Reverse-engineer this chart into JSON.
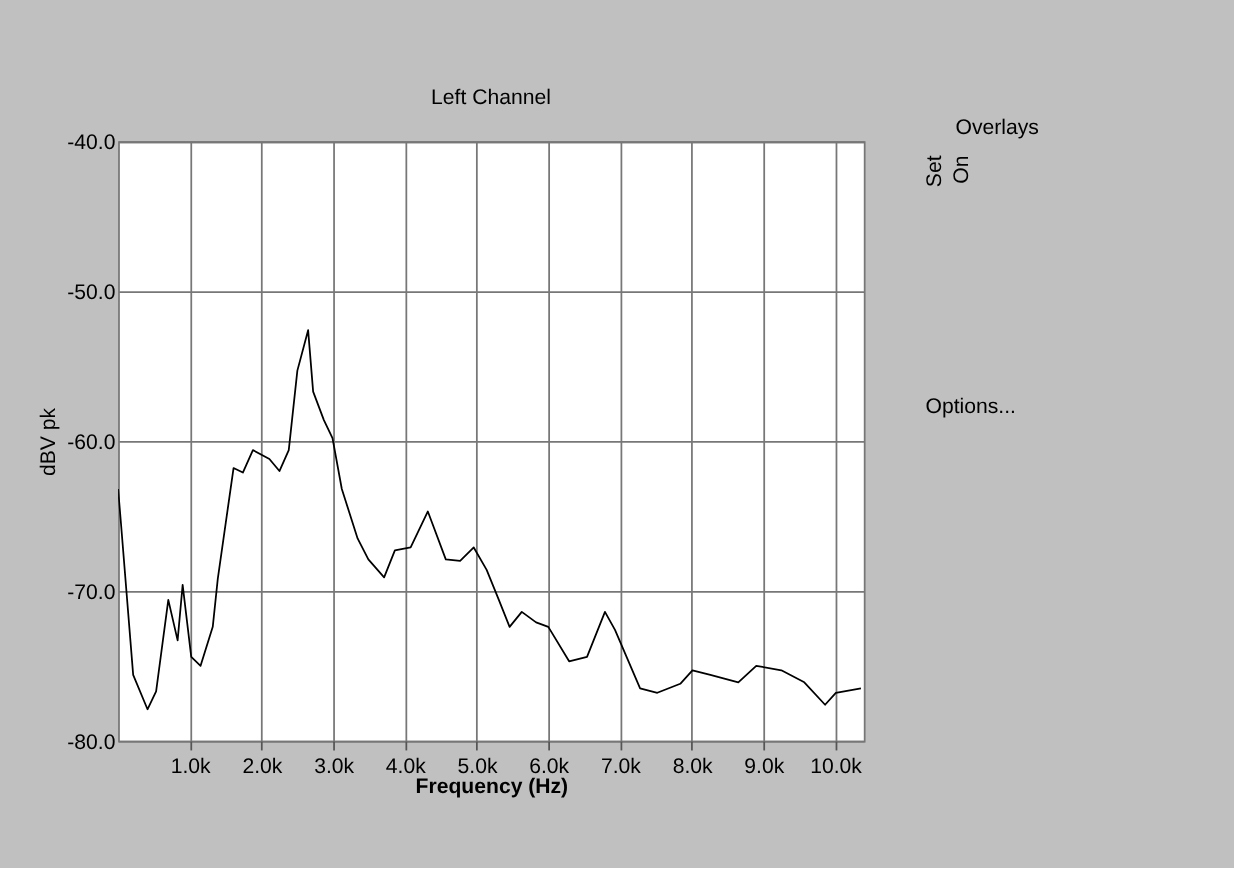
{
  "chart_data": {
    "type": "line",
    "title": "Left Channel",
    "xlabel": "Frequency (Hz)",
    "ylabel": "dBV pk",
    "x": [
      0,
      40,
      210,
      410,
      530,
      700,
      830,
      900,
      1020,
      1150,
      1320,
      1390,
      1610,
      1740,
      1880,
      2110,
      2250,
      2380,
      2500,
      2650,
      2720,
      2870,
      2990,
      3120,
      3340,
      3490,
      3710,
      3860,
      4080,
      4320,
      4570,
      4770,
      4960,
      5140,
      5310,
      5460,
      5630,
      5830,
      6000,
      6290,
      6540,
      6790,
      6930,
      7280,
      7520,
      7840,
      8010,
      8260,
      8650,
      8900,
      9250,
      9570,
      9860,
      10010,
      10360
    ],
    "series": [
      {
        "color": "#000000",
        "values": [
          -63.2,
          -65.5,
          -75.6,
          -77.9,
          -76.7,
          -70.6,
          -73.3,
          -69.6,
          -74.4,
          -75.0,
          -72.4,
          -69.2,
          -61.8,
          -62.1,
          -60.6,
          -61.2,
          -62.0,
          -60.6,
          -55.3,
          -52.6,
          -56.7,
          -58.6,
          -59.8,
          -63.2,
          -66.5,
          -67.9,
          -69.1,
          -67.3,
          -67.1,
          -64.7,
          -67.9,
          -68.0,
          -67.1,
          -68.6,
          -70.6,
          -72.4,
          -71.4,
          -72.1,
          -72.4,
          -74.7,
          -74.4,
          -71.4,
          -72.6,
          -76.5,
          -76.8,
          -76.2,
          -75.3,
          -75.6,
          -76.1,
          -75.0,
          -75.3,
          -76.1,
          -77.6,
          -76.8,
          -76.5
        ]
      }
    ],
    "xlim": [
      0,
      10400
    ],
    "xticks": [
      {
        "value": 1000,
        "label": "1.0k"
      },
      {
        "value": 2000,
        "label": "2.0k"
      },
      {
        "value": 3000,
        "label": "3.0k"
      },
      {
        "value": 4000,
        "label": "4.0k"
      },
      {
        "value": 5000,
        "label": "5.0k"
      },
      {
        "value": 6000,
        "label": "6.0k"
      },
      {
        "value": 7000,
        "label": "7.0k"
      },
      {
        "value": 8000,
        "label": "8.0k"
      },
      {
        "value": 9000,
        "label": "9.0k"
      },
      {
        "value": 10000,
        "label": "10.0k"
      }
    ],
    "ylim": [
      -80,
      -40
    ],
    "yticks": [
      {
        "value": -80,
        "label": "-80.0"
      },
      {
        "value": -70,
        "label": "-70.0"
      },
      {
        "value": -60,
        "label": "-60.0"
      },
      {
        "value": -50,
        "label": "-50.0"
      },
      {
        "value": -40,
        "label": "-40.0"
      }
    ],
    "grid": true,
    "marker": "none",
    "line_style": "solid",
    "annotations": [
      "Overlays",
      "Set",
      "On",
      "Options..."
    ]
  }
}
